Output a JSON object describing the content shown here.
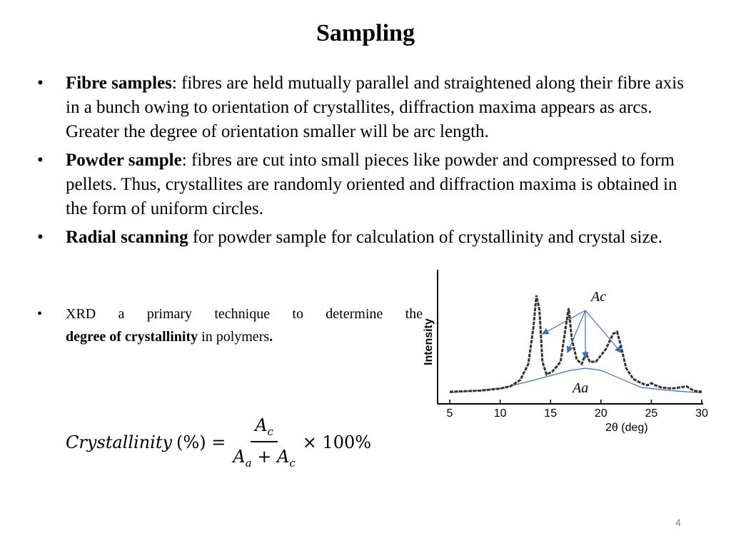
{
  "slide": {
    "title": "Sampling",
    "page_number": "4"
  },
  "bullets": [
    {
      "marker": "•",
      "bold": "Fibre samples",
      "text": ": fibres are held mutually parallel and straightened along their fibre axis in a bunch owing to orientation of crystallites, diffraction maxima appears as arcs. Greater the degree of orientation smaller will be arc length."
    },
    {
      "marker": "•",
      "bold": "Powder sample",
      "text": ": fibres are cut into small pieces like powder and compressed to form pellets. Thus, crystallites are randomly oriented and diffraction maxima is obtained in the form of uniform circles."
    },
    {
      "marker": "•",
      "bold": "Radial scanning",
      "text": " for powder sample for calculation of crystallinity and crystal size."
    }
  ],
  "xrd_note": {
    "marker": "•",
    "text_before": "XRD a primary technique to determine the",
    "bold": "degree of crystallinity",
    "text_after": " in polymers",
    "period": "."
  },
  "formula": {
    "lhs": "Crystallinity",
    "percent": "(%) =",
    "numerator_base": "A",
    "numerator_sub": "c",
    "denominator_a_base": "A",
    "denominator_a_sub": "a",
    "plus": "+",
    "denominator_c_base": "A",
    "denominator_c_sub": "c",
    "rhs": "× 100%"
  },
  "chart_data": {
    "type": "line",
    "title": "",
    "xlabel": "2θ (deg)",
    "ylabel": "Intensity",
    "xlim": [
      5,
      30
    ],
    "xticks": [
      5,
      10,
      15,
      20,
      25,
      30
    ],
    "ylim": [
      0,
      100
    ],
    "y_tick_labels_shown": false,
    "grid": false,
    "annotations": [
      "Ac",
      "Aa"
    ],
    "series": [
      {
        "line_style": "solid-dark",
        "x": [
          5,
          8,
          10,
          11,
          12,
          12.8,
          13.3,
          13.6,
          13.9,
          14.2,
          14.6,
          15.2,
          16,
          16.5,
          16.8,
          17.1,
          17.6,
          18.1,
          18.5,
          18.9,
          19.5,
          20.5,
          21.2,
          21.6,
          21.9,
          22.5,
          23.2,
          24,
          24.6,
          25,
          25.4,
          26,
          27,
          27.8,
          28.5,
          29.2,
          30
        ],
        "y": [
          2,
          3,
          5,
          7,
          13,
          28,
          62,
          92,
          78,
          30,
          18,
          21,
          30,
          62,
          80,
          52,
          32,
          28,
          38,
          30,
          30,
          42,
          56,
          58,
          48,
          24,
          14,
          10,
          8,
          10,
          8,
          6,
          5,
          6,
          7,
          3,
          2
        ]
      },
      {
        "line_style": "thin-blue-amorphous",
        "x": [
          5,
          10,
          13,
          15,
          17,
          18.5,
          20,
          22,
          24,
          27,
          30
        ],
        "y": [
          1,
          5,
          12,
          17,
          22,
          24,
          22,
          14,
          6,
          3,
          1
        ]
      }
    ]
  },
  "colors": {
    "text": "#000000",
    "page_number": "#808080",
    "curve": "#333333",
    "annotation_arrows": "#3b6fc4"
  }
}
